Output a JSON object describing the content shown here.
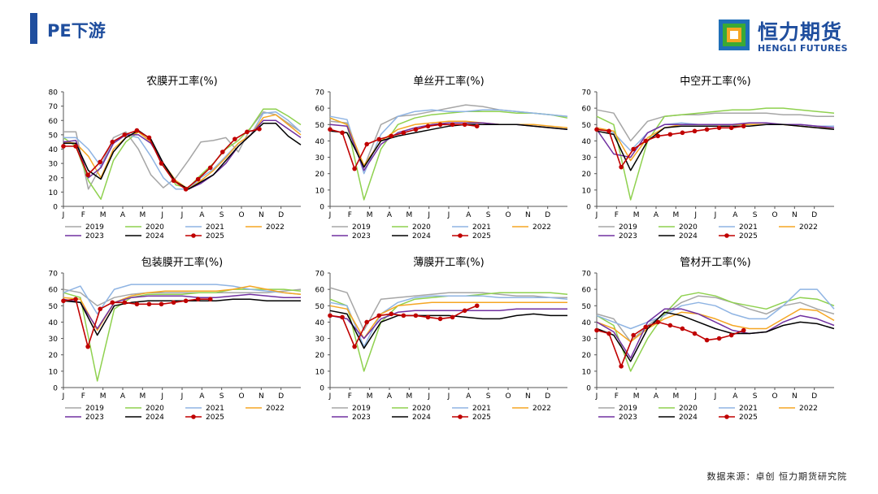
{
  "header": {
    "title": "PE下游"
  },
  "logo": {
    "name_cn": "恒力期货",
    "name_en": "HENGLI FUTURES",
    "colors": [
      "#1f6fb8",
      "#f5a623",
      "#3aaa35"
    ]
  },
  "footer": {
    "source": "数据来源：卓创  恒力期货研究院"
  },
  "colors": {
    "2019": "#a6a6a6",
    "2020": "#8fd14f",
    "2021": "#8fb4e3",
    "2022": "#f5a623",
    "2023": "#7030a0",
    "2024": "#000000",
    "2025": "#c00000"
  },
  "chart_data": [
    {
      "type": "line",
      "title": "农膜开工率(%)",
      "x_tick_labels": [
        "J",
        "F",
        "M",
        "A",
        "M",
        "J",
        "J",
        "A",
        "S",
        "O",
        "N",
        "D"
      ],
      "ylim": [
        0,
        80
      ],
      "yticks": [
        0,
        10,
        20,
        30,
        40,
        50,
        60,
        70,
        80
      ],
      "series": [
        {
          "name": "2019",
          "values": [
            52,
            52,
            12,
            28,
            48,
            52,
            40,
            22,
            13,
            20,
            32,
            45,
            46,
            48,
            38,
            55,
            66,
            64,
            58,
            52
          ]
        },
        {
          "name": "2020",
          "values": [
            48,
            42,
            18,
            5,
            32,
            45,
            52,
            45,
            30,
            15,
            13,
            22,
            30,
            40,
            46,
            55,
            68,
            68,
            63,
            57
          ]
        },
        {
          "name": "2021",
          "values": [
            48,
            48,
            40,
            28,
            45,
            50,
            48,
            35,
            20,
            12,
            12,
            20,
            26,
            35,
            44,
            50,
            65,
            66,
            60,
            52
          ]
        },
        {
          "name": "2022",
          "values": [
            45,
            44,
            35,
            20,
            40,
            48,
            52,
            45,
            30,
            18,
            12,
            18,
            25,
            34,
            44,
            50,
            62,
            64,
            57,
            50
          ]
        },
        {
          "name": "2023",
          "values": [
            45,
            46,
            20,
            27,
            44,
            50,
            50,
            44,
            30,
            17,
            12,
            16,
            22,
            30,
            42,
            50,
            60,
            60,
            54,
            48
          ]
        },
        {
          "name": "2024",
          "values": [
            44,
            44,
            25,
            19,
            38,
            48,
            53,
            47,
            30,
            17,
            12,
            17,
            22,
            32,
            42,
            50,
            58,
            58,
            49,
            43
          ]
        },
        {
          "name": "2025",
          "values": [
            42,
            42,
            22,
            31,
            45,
            50,
            53,
            48,
            30,
            18,
            12,
            19,
            27,
            38,
            47,
            52,
            54
          ]
        }
      ]
    },
    {
      "type": "line",
      "title": "单丝开工率(%)",
      "x_tick_labels": [
        "J",
        "F",
        "M",
        "A",
        "M",
        "J",
        "J",
        "A",
        "S",
        "O",
        "N",
        "D"
      ],
      "ylim": [
        0,
        70
      ],
      "yticks": [
        0,
        10,
        20,
        30,
        40,
        50,
        60,
        70
      ],
      "series": [
        {
          "name": "2019",
          "values": [
            52,
            51,
            24,
            50,
            55,
            56,
            58,
            60,
            62,
            61,
            59,
            58,
            57,
            56,
            55
          ]
        },
        {
          "name": "2020",
          "values": [
            54,
            50,
            4,
            35,
            50,
            54,
            56,
            57,
            58,
            58,
            58,
            57,
            57,
            56,
            54
          ]
        },
        {
          "name": "2021",
          "values": [
            55,
            53,
            20,
            44,
            55,
            58,
            59,
            58,
            58,
            59,
            59,
            58,
            57,
            56,
            55
          ]
        },
        {
          "name": "2022",
          "values": [
            54,
            50,
            25,
            40,
            47,
            50,
            51,
            52,
            52,
            51,
            50,
            50,
            50,
            49,
            48
          ]
        },
        {
          "name": "2023",
          "values": [
            50,
            49,
            22,
            38,
            45,
            48,
            50,
            51,
            51,
            51,
            50,
            50,
            49,
            48,
            47
          ]
        },
        {
          "name": "2024",
          "values": [
            46,
            45,
            24,
            40,
            43,
            45,
            47,
            49,
            50,
            50,
            50,
            50,
            49,
            48,
            47
          ]
        },
        {
          "name": "2025",
          "values": [
            47,
            45,
            23,
            38,
            41,
            43,
            45,
            47,
            49,
            50,
            50,
            50,
            49
          ]
        }
      ]
    },
    {
      "type": "line",
      "title": "中空开工率(%)",
      "x_tick_labels": [
        "J",
        "F",
        "M",
        "A",
        "M",
        "J",
        "J",
        "A",
        "S",
        "O",
        "N",
        "D"
      ],
      "ylim": [
        0,
        70
      ],
      "yticks": [
        0,
        10,
        20,
        30,
        40,
        50,
        60,
        70
      ],
      "series": [
        {
          "name": "2019",
          "values": [
            59,
            57,
            40,
            52,
            55,
            56,
            56,
            57,
            57,
            57,
            57,
            56,
            56,
            55,
            55
          ]
        },
        {
          "name": "2020",
          "values": [
            55,
            50,
            4,
            40,
            55,
            56,
            57,
            58,
            59,
            59,
            60,
            60,
            59,
            58,
            57
          ]
        },
        {
          "name": "2021",
          "values": [
            48,
            45,
            34,
            45,
            50,
            51,
            50,
            50,
            50,
            50,
            50,
            50,
            50,
            49,
            49
          ]
        },
        {
          "name": "2022",
          "values": [
            48,
            46,
            28,
            42,
            48,
            50,
            50,
            50,
            50,
            50,
            50,
            50,
            49,
            48,
            48
          ]
        },
        {
          "name": "2023",
          "values": [
            47,
            32,
            30,
            45,
            50,
            50,
            50,
            50,
            50,
            51,
            51,
            50,
            50,
            49,
            48
          ]
        },
        {
          "name": "2024",
          "values": [
            46,
            44,
            22,
            40,
            48,
            49,
            49,
            49,
            49,
            49,
            50,
            50,
            49,
            48,
            47
          ]
        },
        {
          "name": "2025",
          "values": [
            47,
            46,
            24,
            35,
            40,
            43,
            44,
            45,
            46,
            47,
            48,
            48,
            49
          ]
        }
      ]
    },
    {
      "type": "line",
      "title": "包装膜开工率(%)",
      "x_tick_labels": [
        "J",
        "F",
        "M",
        "A",
        "M",
        "J",
        "J",
        "A",
        "S",
        "O",
        "N",
        "D"
      ],
      "ylim": [
        0,
        70
      ],
      "yticks": [
        0,
        10,
        20,
        30,
        40,
        50,
        60,
        70
      ],
      "series": [
        {
          "name": "2019",
          "values": [
            60,
            58,
            50,
            55,
            57,
            58,
            58,
            58,
            58,
            58,
            58,
            58,
            58,
            59,
            60
          ]
        },
        {
          "name": "2020",
          "values": [
            58,
            55,
            4,
            48,
            55,
            57,
            57,
            57,
            58,
            58,
            60,
            60,
            60,
            60,
            59
          ]
        },
        {
          "name": "2021",
          "values": [
            58,
            62,
            45,
            60,
            63,
            63,
            63,
            63,
            63,
            63,
            62,
            60,
            59,
            58,
            57
          ]
        },
        {
          "name": "2022",
          "values": [
            55,
            54,
            35,
            52,
            56,
            58,
            59,
            59,
            59,
            59,
            60,
            62,
            60,
            58,
            57
          ]
        },
        {
          "name": "2023",
          "values": [
            54,
            52,
            36,
            52,
            55,
            56,
            56,
            56,
            55,
            55,
            56,
            57,
            56,
            55,
            55
          ]
        },
        {
          "name": "2024",
          "values": [
            53,
            52,
            32,
            50,
            52,
            53,
            53,
            53,
            53,
            53,
            54,
            54,
            53,
            53,
            53
          ]
        },
        {
          "name": "2025",
          "values": [
            53,
            54,
            25,
            48,
            52,
            52,
            51,
            51,
            51,
            52,
            53,
            54,
            54
          ]
        }
      ]
    },
    {
      "type": "line",
      "title": "薄膜开工率(%)",
      "x_tick_labels": [
        "J",
        "F",
        "M",
        "A",
        "M",
        "J",
        "J",
        "A",
        "S",
        "O",
        "N",
        "D"
      ],
      "ylim": [
        0,
        70
      ],
      "yticks": [
        0,
        10,
        20,
        30,
        40,
        50,
        60,
        70
      ],
      "series": [
        {
          "name": "2019",
          "values": [
            61,
            58,
            35,
            54,
            55,
            56,
            57,
            58,
            58,
            58,
            57,
            56,
            56,
            55,
            55
          ]
        },
        {
          "name": "2020",
          "values": [
            54,
            50,
            10,
            40,
            50,
            54,
            55,
            56,
            56,
            57,
            58,
            58,
            58,
            58,
            57
          ]
        },
        {
          "name": "2021",
          "values": [
            52,
            50,
            25,
            45,
            52,
            55,
            56,
            56,
            56,
            56,
            55,
            55,
            55,
            55,
            54
          ]
        },
        {
          "name": "2022",
          "values": [
            50,
            48,
            30,
            45,
            50,
            51,
            52,
            52,
            52,
            52,
            52,
            52,
            52,
            52,
            52
          ]
        },
        {
          "name": "2023",
          "values": [
            44,
            42,
            30,
            42,
            46,
            47,
            47,
            47,
            47,
            47,
            47,
            48,
            48,
            48,
            48
          ]
        },
        {
          "name": "2024",
          "values": [
            47,
            45,
            24,
            40,
            44,
            44,
            44,
            44,
            43,
            42,
            42,
            44,
            45,
            44,
            44
          ]
        },
        {
          "name": "2025",
          "values": [
            44,
            43,
            25,
            40,
            44,
            45,
            44,
            44,
            43,
            42,
            43,
            47,
            50
          ]
        }
      ]
    },
    {
      "type": "line",
      "title": "管材开工率(%)",
      "x_tick_labels": [
        "J",
        "F",
        "M",
        "A",
        "M",
        "J",
        "J",
        "A",
        "S",
        "O",
        "N",
        "D"
      ],
      "ylim": [
        0,
        70
      ],
      "yticks": [
        0,
        10,
        20,
        30,
        40,
        50,
        60,
        70
      ],
      "series": [
        {
          "name": "2019",
          "values": [
            45,
            42,
            28,
            38,
            45,
            52,
            56,
            55,
            52,
            48,
            45,
            50,
            52,
            48,
            45
          ]
        },
        {
          "name": "2020",
          "values": [
            44,
            38,
            10,
            30,
            45,
            56,
            58,
            56,
            52,
            50,
            48,
            52,
            55,
            54,
            50
          ]
        },
        {
          "name": "2021",
          "values": [
            44,
            40,
            36,
            40,
            44,
            50,
            52,
            50,
            45,
            42,
            42,
            50,
            60,
            60,
            48
          ]
        },
        {
          "name": "2022",
          "values": [
            40,
            36,
            28,
            36,
            42,
            46,
            45,
            42,
            38,
            36,
            36,
            42,
            48,
            47,
            41
          ]
        },
        {
          "name": "2023",
          "values": [
            40,
            34,
            18,
            40,
            48,
            48,
            45,
            40,
            35,
            33,
            34,
            40,
            44,
            42,
            38
          ]
        },
        {
          "name": "2024",
          "values": [
            36,
            32,
            16,
            36,
            46,
            44,
            40,
            36,
            33,
            33,
            34,
            38,
            40,
            39,
            36
          ]
        },
        {
          "name": "2025",
          "values": [
            35,
            33,
            13,
            32,
            37,
            40,
            38,
            36,
            33,
            29,
            30,
            32,
            35
          ]
        }
      ]
    }
  ]
}
